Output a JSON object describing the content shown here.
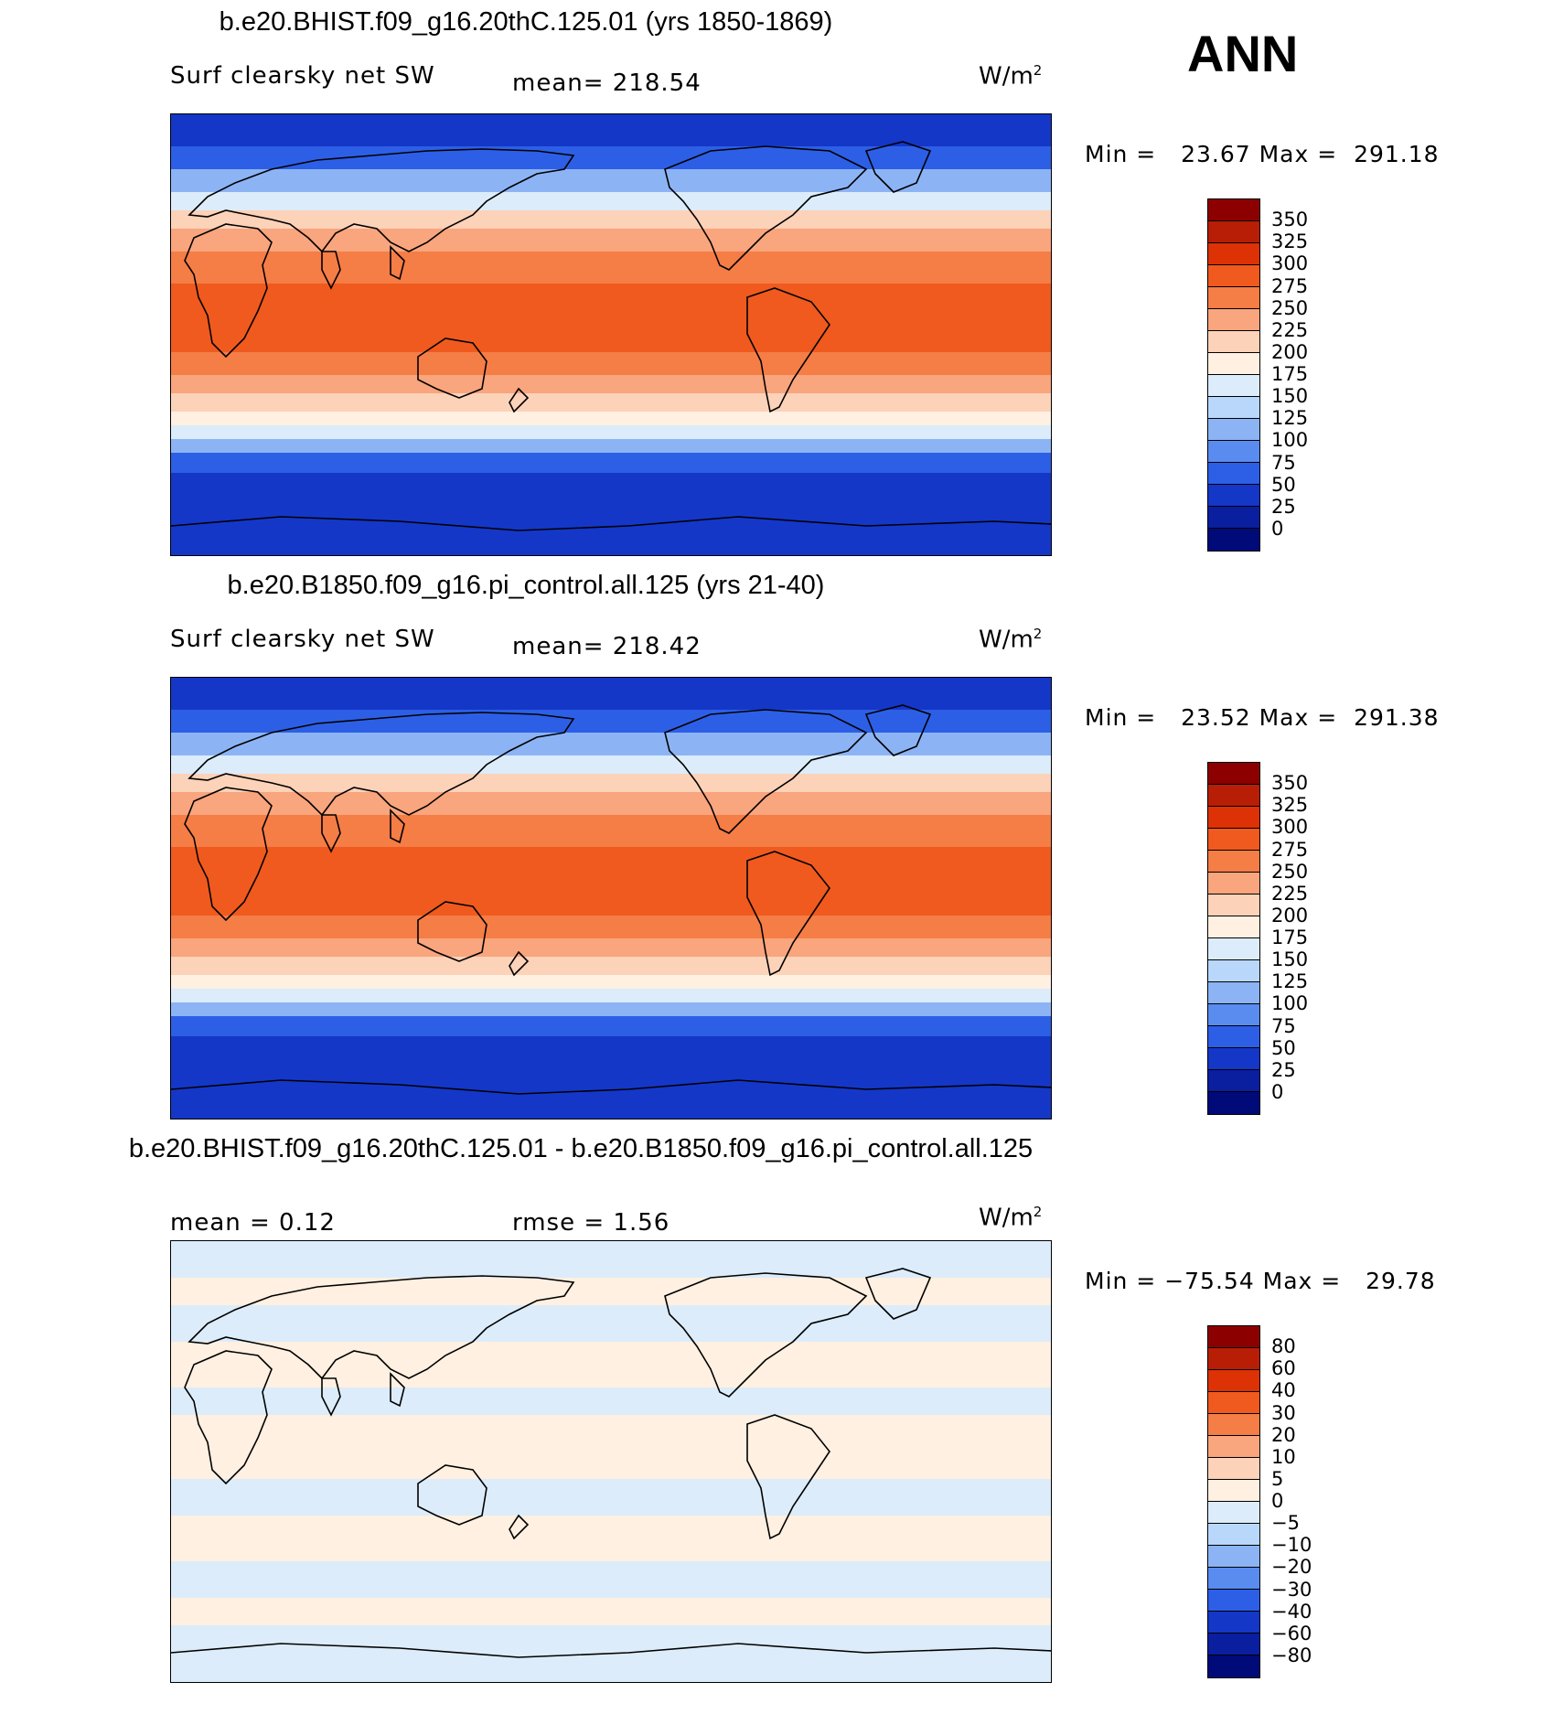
{
  "season": "ANN",
  "panels": [
    {
      "title": "b.e20.BHIST.f09_g16.20thC.125.01 (yrs 1850-1869)",
      "variable": "Surf clearsky net SW",
      "stat": "mean= 218.54",
      "stat2": "",
      "unit": "W/m",
      "unit_sup": "2",
      "minmax": "Min =   23.67 Max =  291.18",
      "type": "absolute"
    },
    {
      "title": "b.e20.B1850.f09_g16.pi_control.all.125 (yrs 21-40)",
      "variable": "Surf clearsky net SW",
      "stat": "mean= 218.42",
      "stat2": "",
      "unit": "W/m",
      "unit_sup": "2",
      "minmax": "Min =   23.52 Max =  291.38",
      "type": "absolute"
    },
    {
      "title": "b.e20.BHIST.f09_g16.20thC.125.01 - b.e20.B1850.f09_g16.pi_control.all.125",
      "variable": "mean =    0.12",
      "stat": "rmse =    1.56",
      "stat2": "",
      "unit": "W/m",
      "unit_sup": "2",
      "minmax": "Min = −75.54 Max =   29.78",
      "type": "difference"
    }
  ],
  "colorbar_abs": {
    "labels": [
      "350",
      "325",
      "300",
      "275",
      "250",
      "225",
      "200",
      "175",
      "150",
      "125",
      "100",
      "75",
      "50",
      "25",
      "0"
    ],
    "colors": [
      "#8c0000",
      "#b81e05",
      "#dc3205",
      "#f05a1e",
      "#f57d46",
      "#f9a57d",
      "#fcd2b9",
      "#fff0e1",
      "#dcecfa",
      "#b9d7fa",
      "#8cb4f5",
      "#5a8cf0",
      "#2d5fe6",
      "#1437c8",
      "#0a1ea0",
      "#000a78"
    ]
  },
  "colorbar_diff": {
    "labels": [
      "80",
      "60",
      "40",
      "30",
      "20",
      "10",
      "5",
      "0",
      "−5",
      "−10",
      "−20",
      "−30",
      "−40",
      "−60",
      "−80"
    ],
    "colors": [
      "#8c0000",
      "#b81e05",
      "#dc3205",
      "#f05a1e",
      "#f57d46",
      "#f9a57d",
      "#fcd2b9",
      "#fff0e1",
      "#dcecfa",
      "#b9d7fa",
      "#8cb4f5",
      "#5a8cf0",
      "#2d5fe6",
      "#1437c8",
      "#0a1ea0",
      "#000a78"
    ]
  }
}
